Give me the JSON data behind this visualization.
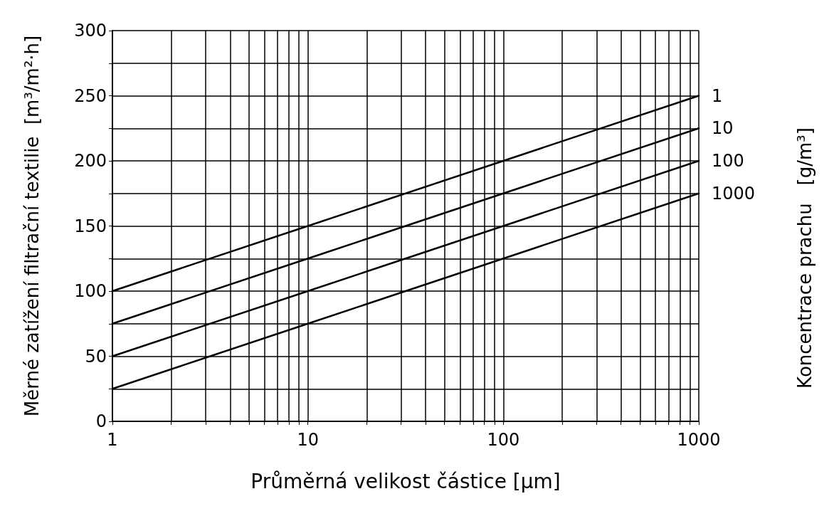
{
  "chart_data": {
    "type": "line",
    "xlabel": "Průměrná velikost částice [µm]",
    "ylabel": "Měrné zatížení filtrační textilie  [m³/m²·h]",
    "legend_title": "Koncentrace prachu   [g/m³]",
    "x": [
      1,
      10,
      100,
      1000
    ],
    "series": [
      {
        "name": "1",
        "color": "#000000",
        "values": [
          100,
          150,
          200,
          250
        ]
      },
      {
        "name": "10",
        "color": "#000000",
        "values": [
          75,
          125,
          175,
          225
        ]
      },
      {
        "name": "100",
        "color": "#000000",
        "values": [
          50,
          100,
          150,
          200
        ]
      },
      {
        "name": "1000",
        "color": "#000000",
        "values": [
          25,
          75,
          125,
          175
        ]
      }
    ],
    "xlim": [
      1,
      1000
    ],
    "ylim": [
      0,
      300
    ],
    "xticks": [
      1,
      {
        "value": 2,
        "label": null
      },
      {
        "value": 3,
        "label": null
      },
      {
        "value": 4,
        "label": null
      },
      {
        "value": 5,
        "label": null
      },
      {
        "value": 6,
        "label": null
      },
      {
        "value": 7,
        "label": null
      },
      {
        "value": 8,
        "label": null
      },
      {
        "value": 9,
        "label": null
      },
      10,
      {
        "value": 20,
        "label": null
      },
      {
        "value": 30,
        "label": null
      },
      {
        "value": 40,
        "label": null
      },
      {
        "value": 50,
        "label": null
      },
      {
        "value": 60,
        "label": null
      },
      {
        "value": 70,
        "label": null
      },
      {
        "value": 80,
        "label": null
      },
      {
        "value": 90,
        "label": null
      },
      100,
      {
        "value": 200,
        "label": null
      },
      {
        "value": 300,
        "label": null
      },
      {
        "value": 400,
        "label": null
      },
      {
        "value": 500,
        "label": null
      },
      {
        "value": 600,
        "label": null
      },
      {
        "value": 700,
        "label": null
      },
      {
        "value": 800,
        "label": null
      },
      {
        "value": 900,
        "label": null
      },
      1000
    ],
    "yticks": [
      0,
      {
        "value": 25,
        "label": null
      },
      50,
      {
        "value": 75,
        "label": null
      },
      100,
      {
        "value": 125,
        "label": null
      },
      150,
      {
        "value": 175,
        "label": null
      },
      200,
      {
        "value": 225,
        "label": null
      },
      250,
      {
        "value": 275,
        "label": null
      },
      300
    ],
    "log": "x",
    "grid": true,
    "marker": "none",
    "line_style": "solid"
  }
}
